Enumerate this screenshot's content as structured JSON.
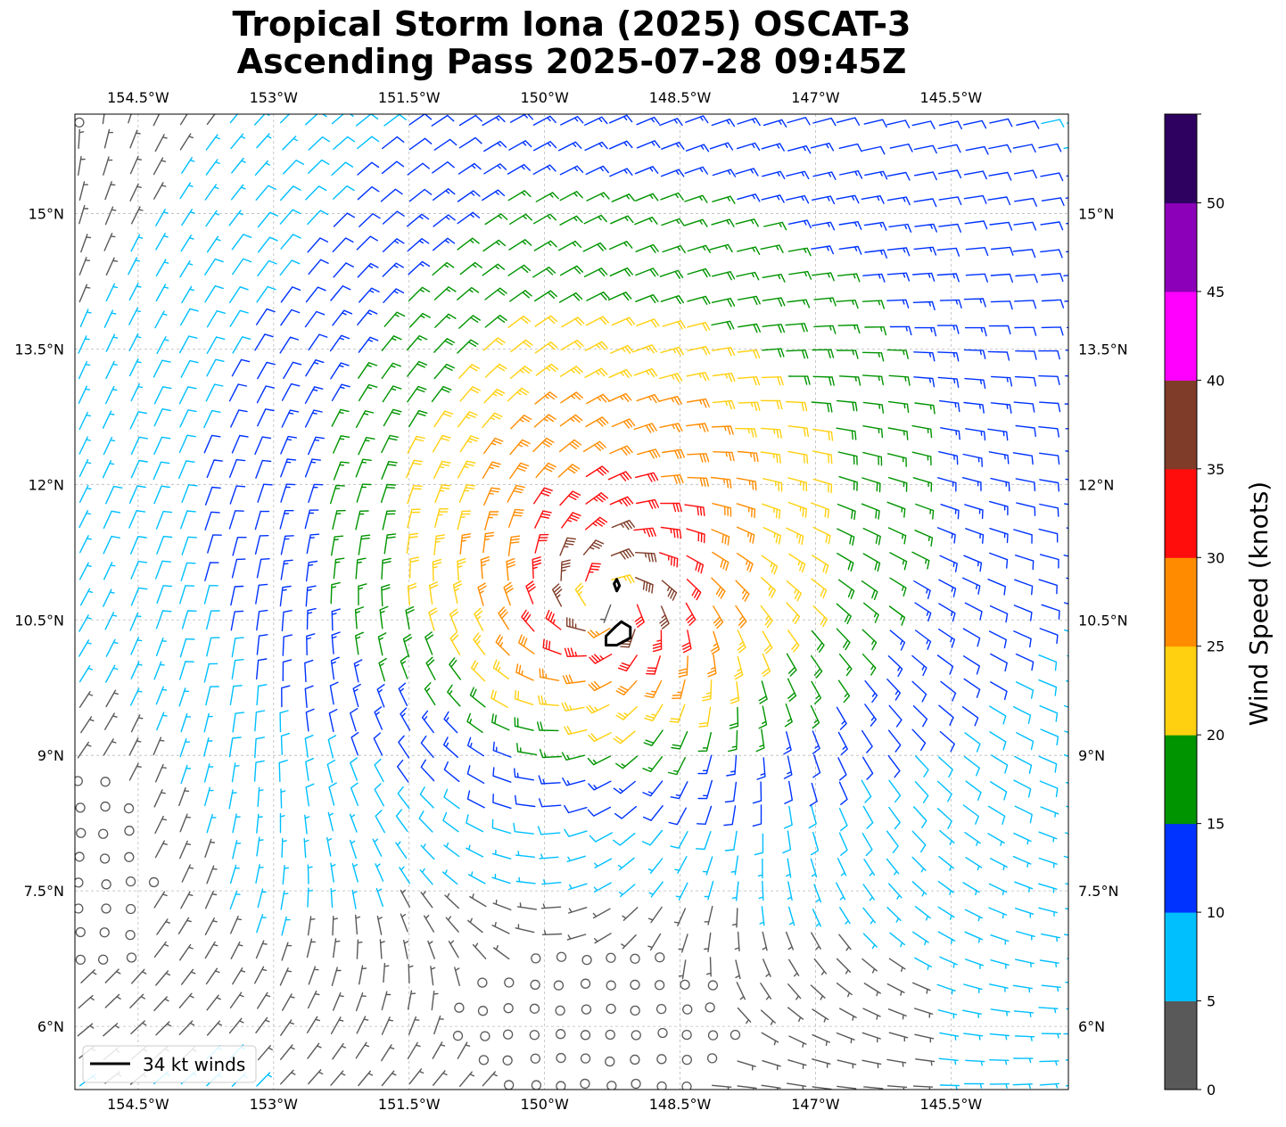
{
  "title_lines": [
    "Tropical Storm Iona (2025) OSCAT-3",
    "Ascending Pass 2025-07-28 09:45Z"
  ],
  "map": {
    "lon_range": [
      -155.2,
      -144.2
    ],
    "lat_range": [
      5.3,
      16.1
    ],
    "lon_ticks": [
      -154.5,
      -153,
      -151.5,
      -150,
      -148.5,
      -147,
      -145.5
    ],
    "lon_tick_labels": [
      "154.5°W",
      "153°W",
      "151.5°W",
      "150°W",
      "148.5°W",
      "147°W",
      "145.5°W"
    ],
    "lat_ticks": [
      6,
      7.5,
      9,
      10.5,
      12,
      13.5,
      15
    ],
    "lat_tick_labels": [
      "6°N",
      "7.5°N",
      "9°N",
      "10.5°N",
      "12°N",
      "13.5°N",
      "15°N"
    ],
    "gridlines": true,
    "barb_spacing_deg": 0.28
  },
  "storm": {
    "center_lon": -149.3,
    "center_lat": 10.7,
    "max_wind_kt": 38,
    "rmw_deg": 0.4,
    "decay_deg": 2.6,
    "inflow_deg": 25,
    "env_u_kt": -7,
    "env_v_kt": -3
  },
  "wind_34kt_contours": [
    [
      [
        -149.15,
        10.48
      ],
      [
        -149.05,
        10.42
      ],
      [
        -149.05,
        10.3
      ],
      [
        -149.2,
        10.22
      ],
      [
        -149.32,
        10.22
      ],
      [
        -149.32,
        10.32
      ],
      [
        -149.22,
        10.42
      ],
      [
        -149.15,
        10.48
      ]
    ],
    [
      [
        -149.2,
        10.95
      ],
      [
        -149.17,
        10.88
      ],
      [
        -149.2,
        10.82
      ],
      [
        -149.23,
        10.9
      ],
      [
        -149.2,
        10.95
      ]
    ]
  ],
  "legend": {
    "label": "34 kt winds",
    "position": "lower-left"
  },
  "colorbar": {
    "title": "Wind Speed (knots)",
    "bins": [
      {
        "min": 0,
        "max": 5,
        "color": "#595959"
      },
      {
        "min": 5,
        "max": 10,
        "color": "#00bfff"
      },
      {
        "min": 10,
        "max": 15,
        "color": "#0033ff"
      },
      {
        "min": 15,
        "max": 20,
        "color": "#009400"
      },
      {
        "min": 20,
        "max": 25,
        "color": "#ffd010"
      },
      {
        "min": 25,
        "max": 30,
        "color": "#ff8c00"
      },
      {
        "min": 30,
        "max": 35,
        "color": "#ff0d0d"
      },
      {
        "min": 35,
        "max": 40,
        "color": "#7f3c28"
      },
      {
        "min": 40,
        "max": 45,
        "color": "#ff00ff"
      },
      {
        "min": 45,
        "max": 50,
        "color": "#8b00b8"
      },
      {
        "min": 50,
        "max": 55,
        "color": "#2e005f"
      }
    ],
    "tick_values": [
      0,
      5,
      10,
      15,
      20,
      25,
      30,
      35,
      40,
      45,
      50
    ],
    "tick_labels": [
      "0",
      "5",
      "10",
      "15",
      "20",
      "25",
      "30",
      "35",
      "40",
      "45",
      "50"
    ]
  }
}
